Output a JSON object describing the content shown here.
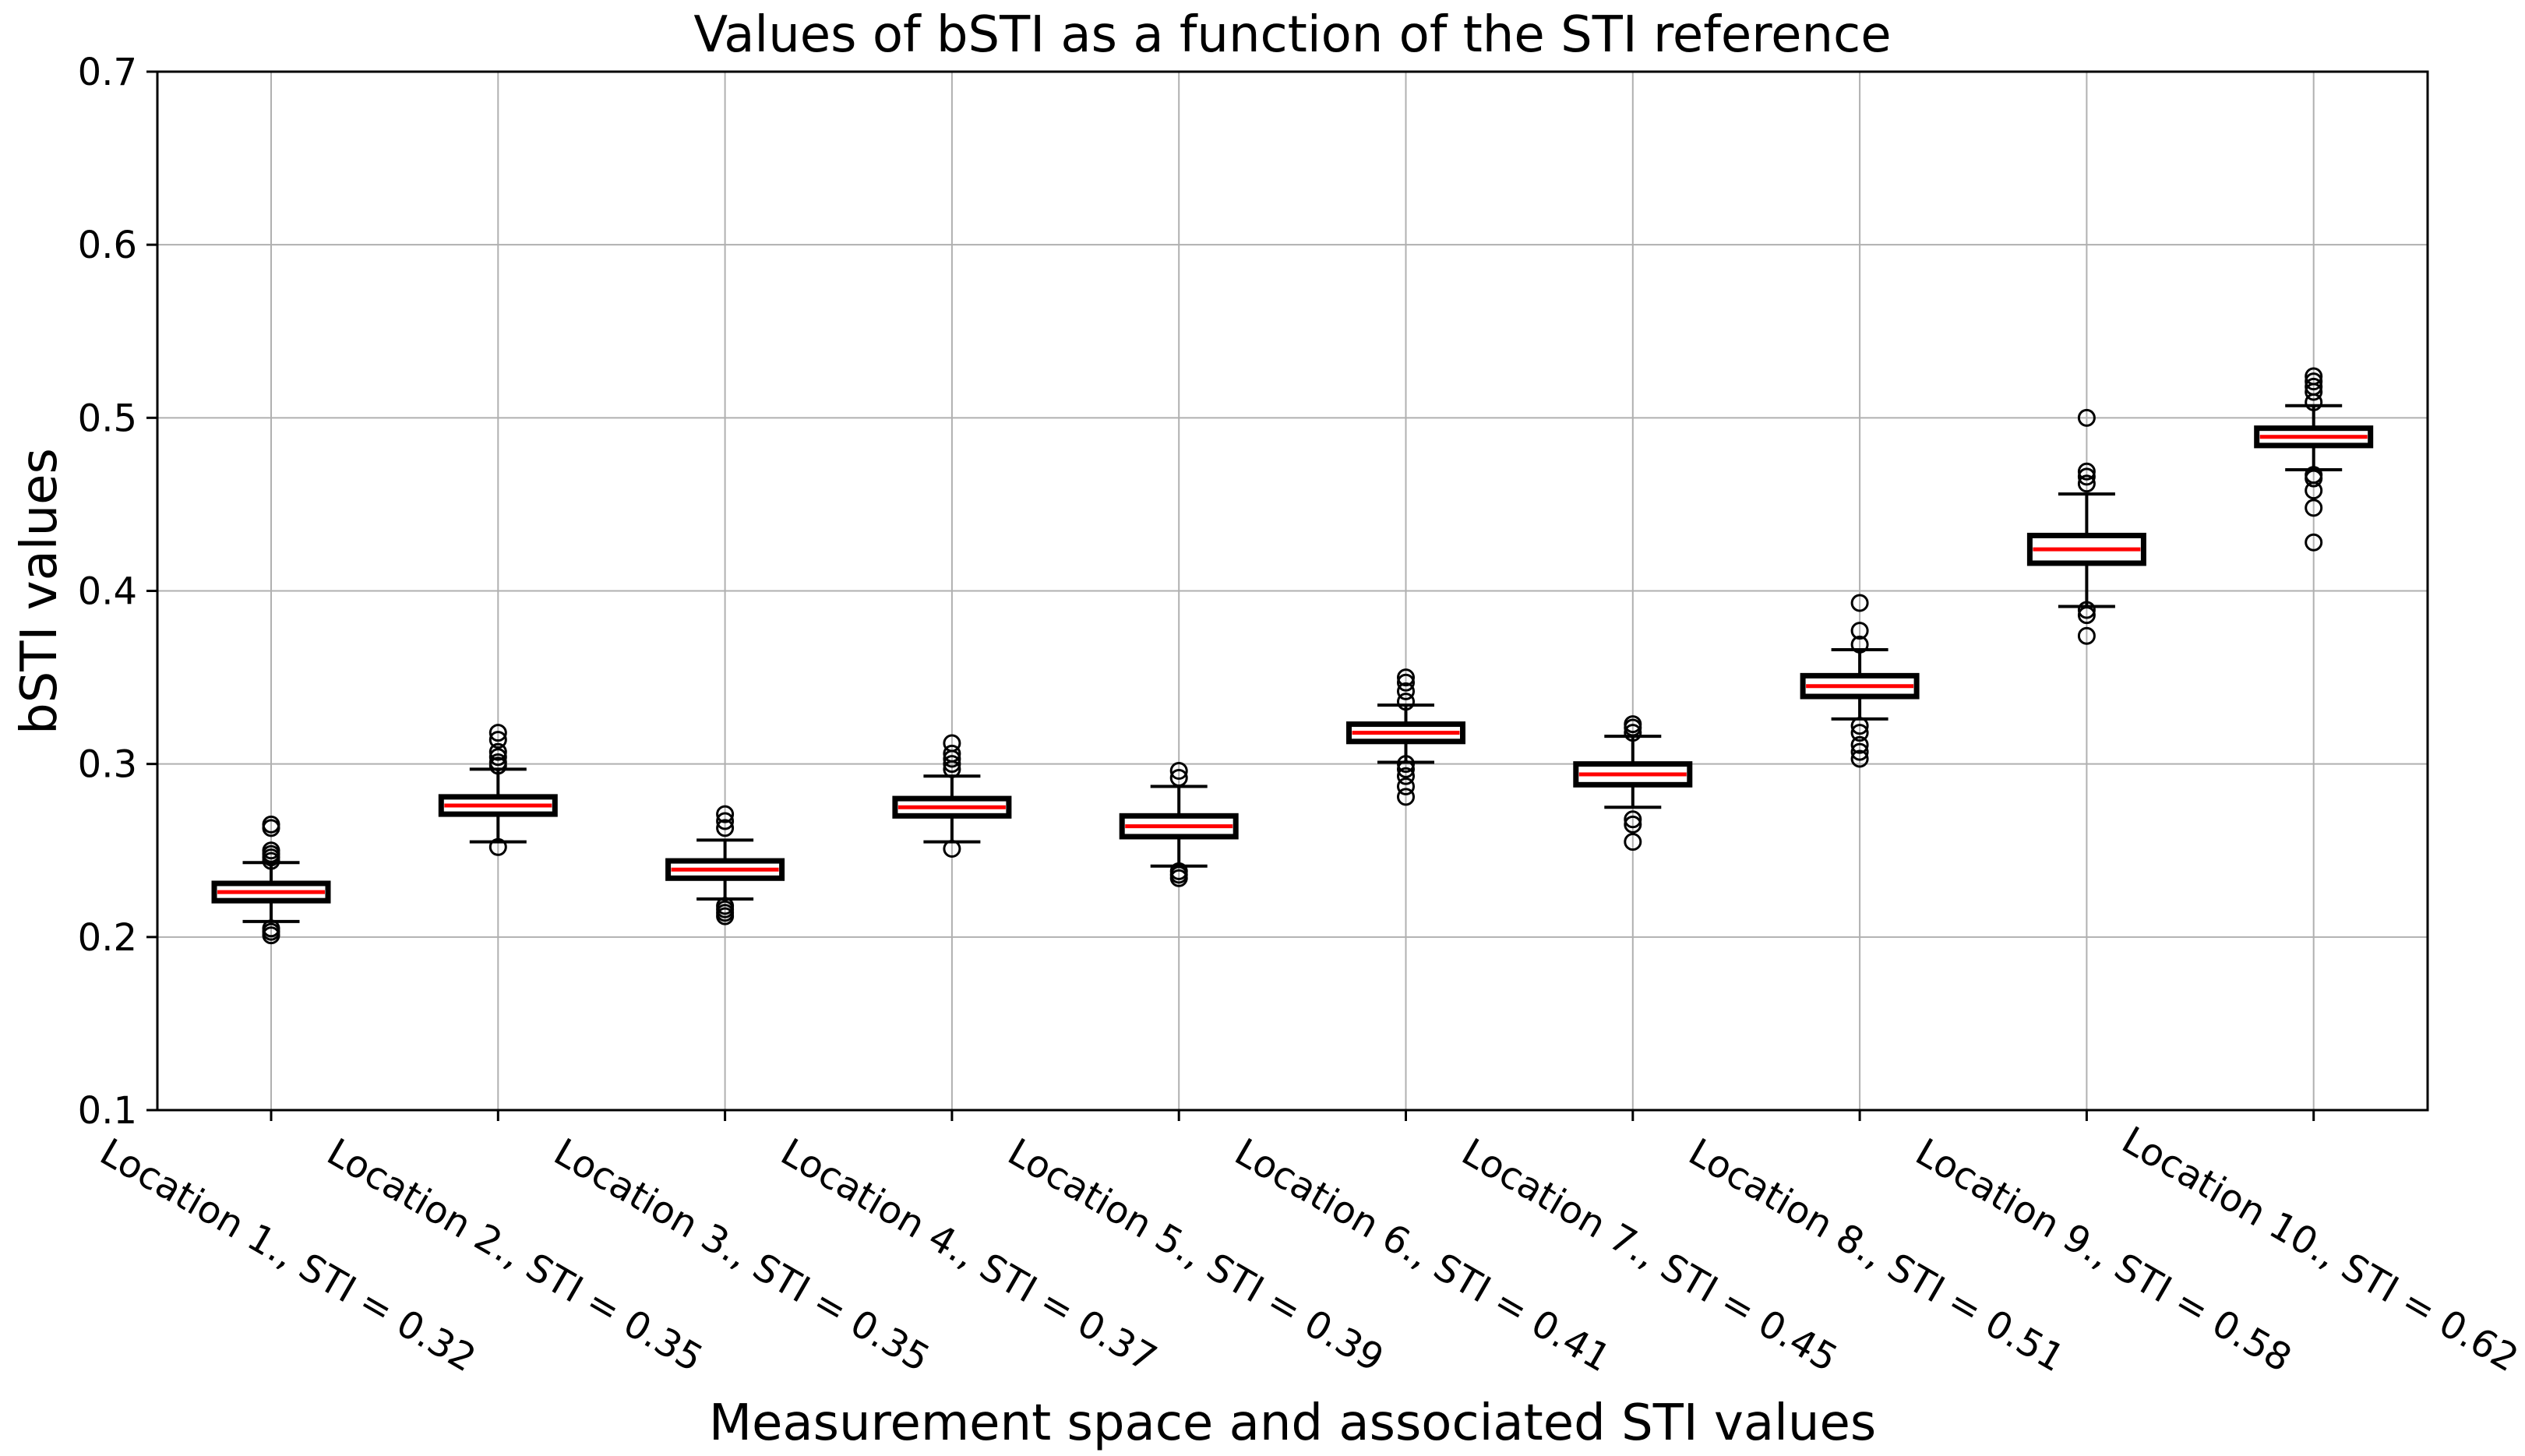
{
  "chart_data": {
    "type": "box",
    "title": "Values of bSTI as a function of the STI reference",
    "xlabel": "Measurement space and associated STI values",
    "ylabel": "bSTI values",
    "ylim": [
      0.1,
      0.7
    ],
    "yticks": [
      0.1,
      0.2,
      0.3,
      0.4,
      0.5,
      0.6,
      0.7
    ],
    "ytick_labels": [
      "0.1",
      "0.2",
      "0.3",
      "0.4",
      "0.5",
      "0.6",
      "0.7"
    ],
    "grid": true,
    "categories": [
      "Location 1., STI = 0.32",
      "Location 2., STI = 0.35",
      "Location 3., STI = 0.35",
      "Location 4., STI = 0.37",
      "Location 5., STI = 0.39",
      "Location 6., STI = 0.41",
      "Location 7., STI = 0.45",
      "Location 8., STI = 0.51",
      "Location 9., STI = 0.58",
      "Location 10., STI = 0.62"
    ],
    "boxes": [
      {
        "whisker_low": 0.209,
        "q1": 0.221,
        "median": 0.226,
        "q3": 0.231,
        "whisker_high": 0.243,
        "outliers": [
          0.201,
          0.203,
          0.205,
          0.244,
          0.246,
          0.248,
          0.25,
          0.263,
          0.265
        ]
      },
      {
        "whisker_low": 0.255,
        "q1": 0.271,
        "median": 0.276,
        "q3": 0.281,
        "whisker_high": 0.297,
        "outliers": [
          0.252,
          0.299,
          0.301,
          0.304,
          0.307,
          0.314,
          0.318
        ]
      },
      {
        "whisker_low": 0.222,
        "q1": 0.234,
        "median": 0.239,
        "q3": 0.244,
        "whisker_high": 0.256,
        "outliers": [
          0.212,
          0.214,
          0.216,
          0.218,
          0.263,
          0.267,
          0.271
        ]
      },
      {
        "whisker_low": 0.255,
        "q1": 0.27,
        "median": 0.275,
        "q3": 0.28,
        "whisker_high": 0.293,
        "outliers": [
          0.251,
          0.297,
          0.3,
          0.303,
          0.306,
          0.312
        ]
      },
      {
        "whisker_low": 0.241,
        "q1": 0.258,
        "median": 0.264,
        "q3": 0.27,
        "whisker_high": 0.287,
        "outliers": [
          0.234,
          0.236,
          0.238,
          0.292,
          0.296
        ]
      },
      {
        "whisker_low": 0.301,
        "q1": 0.313,
        "median": 0.318,
        "q3": 0.323,
        "whisker_high": 0.334,
        "outliers": [
          0.281,
          0.287,
          0.293,
          0.297,
          0.3,
          0.336,
          0.342,
          0.347,
          0.35
        ]
      },
      {
        "whisker_low": 0.275,
        "q1": 0.288,
        "median": 0.294,
        "q3": 0.3,
        "whisker_high": 0.316,
        "outliers": [
          0.255,
          0.265,
          0.268,
          0.318,
          0.321,
          0.323
        ]
      },
      {
        "whisker_low": 0.326,
        "q1": 0.339,
        "median": 0.345,
        "q3": 0.351,
        "whisker_high": 0.366,
        "outliers": [
          0.303,
          0.307,
          0.311,
          0.318,
          0.322,
          0.369,
          0.377,
          0.393
        ]
      },
      {
        "whisker_low": 0.391,
        "q1": 0.416,
        "median": 0.424,
        "q3": 0.432,
        "whisker_high": 0.456,
        "outliers": [
          0.374,
          0.386,
          0.389,
          0.462,
          0.466,
          0.469,
          0.5
        ]
      },
      {
        "whisker_low": 0.47,
        "q1": 0.484,
        "median": 0.489,
        "q3": 0.494,
        "whisker_high": 0.507,
        "outliers": [
          0.428,
          0.448,
          0.458,
          0.465,
          0.467,
          0.509,
          0.515,
          0.518,
          0.521,
          0.524
        ]
      }
    ],
    "colors": {
      "box": "#000000",
      "median": "#ff0000",
      "grid": "#b0b0b0",
      "outlier_stroke": "#000000"
    }
  }
}
